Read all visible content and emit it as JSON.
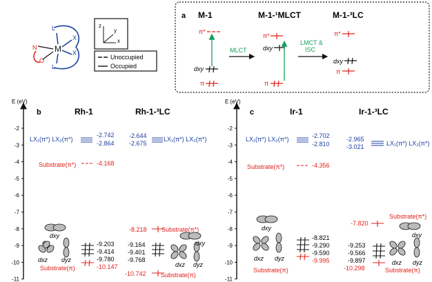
{
  "colors": {
    "blue": "#1a3fa0",
    "red": "#e0201a",
    "green": "#17a05a",
    "black": "#111111"
  },
  "scheme": {
    "ligand_L_top": "L",
    "ligand_L_bottom": "L",
    "ligand_X_top": "X",
    "ligand_X_bottom": "X",
    "metal": "M",
    "N": "N",
    "O": "O"
  },
  "axes_glyph": {
    "z": "z",
    "y": "y",
    "x": "x"
  },
  "legend": {
    "unoccupied": "Unoccupied",
    "occupied": "Occupied"
  },
  "panel_a": {
    "letter": "a",
    "states": [
      "M-1",
      "M-1-¹MLCT",
      "M-1-³LC"
    ],
    "arrow1": "MLCT",
    "arrow2_line1": "LMCT &",
    "arrow2_line2": "ISC",
    "pi_star": "π*",
    "dxy": "dxy",
    "pi": "π"
  },
  "yaxis": {
    "label": "E (eV)",
    "ticks": [
      "-2",
      "-3",
      "-4",
      "-5",
      "-6",
      "-7",
      "-8",
      "-9",
      "-10",
      "-11"
    ]
  },
  "panel_b": {
    "letter": "b",
    "col1_title": "Rh-1",
    "col2_title": "Rh-1-³LC",
    "lx": "LX₁(π*)  LX₂(π*)",
    "substrate_pi_star": "Substrate(π*)",
    "substrate_pi": "Substrate(π)",
    "col1_values": [
      "-2.742",
      "-2.864",
      "-4.168",
      "-9.203",
      "-9.414",
      "-9.780",
      "-10.147"
    ],
    "col2_values": [
      "-2.644",
      "-2.675",
      "-8.218",
      "-9.164",
      "-9.401",
      "-9.768",
      "-10.742"
    ]
  },
  "panel_c": {
    "letter": "c",
    "col1_title": "Ir-1",
    "col2_title": "Ir-1-³LC",
    "lx": "LX₁(π*)  LX₂(π*)",
    "substrate_pi_star": "Substrate(π*)",
    "substrate_pi": "Substrate(π)",
    "col1_values": [
      "-2.702",
      "-2.810",
      "-4.356",
      "-8.821",
      "-9.290",
      "-9.590",
      "-9.995"
    ],
    "col2_values": [
      "-2.965",
      "-3.021",
      "-7.820",
      "-9.253",
      "-9.566",
      "-9.897",
      "-10.298"
    ]
  },
  "orbitals": {
    "dxy": "dxy",
    "dxz": "dxz",
    "dyz": "dyz"
  }
}
